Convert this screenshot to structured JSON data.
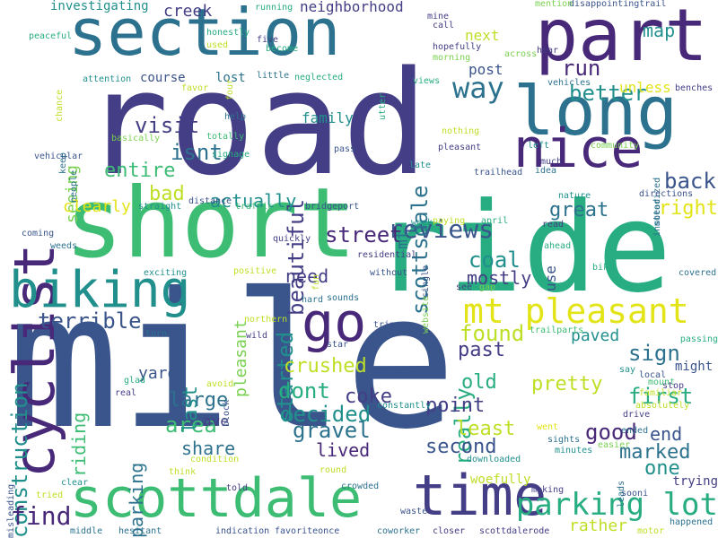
{
  "palette": {
    "dark_purple": "#482878",
    "indigo": "#433e85",
    "blue": "#3a548c",
    "teal_blue": "#2c728e",
    "teal": "#21908d",
    "green_teal": "#27ad81",
    "green": "#3dbc74",
    "light_green": "#7ad151",
    "yellow_green": "#bddf26",
    "yellow": "#e3e418"
  },
  "words": [
    {
      "text": "mile",
      "color": "blue"
    },
    {
      "text": "road",
      "color": "indigo"
    },
    {
      "text": "ride",
      "color": "green_teal"
    },
    {
      "text": "short",
      "color": "green"
    },
    {
      "text": "section",
      "color": "teal_blue"
    },
    {
      "text": "part",
      "color": "dark_purple"
    },
    {
      "text": "long",
      "color": "teal_blue"
    },
    {
      "text": "scottdale",
      "color": "green"
    },
    {
      "text": "time",
      "color": "indigo"
    },
    {
      "text": "cyclist",
      "color": "dark_purple"
    },
    {
      "text": "nice",
      "color": "dark_purple"
    },
    {
      "text": "biking",
      "color": "teal"
    },
    {
      "text": "go",
      "color": "dark_purple"
    },
    {
      "text": "mt pleasant",
      "color": "yellow"
    },
    {
      "text": "parking lot",
      "color": "green_teal"
    },
    {
      "text": "construction",
      "color": "teal"
    },
    {
      "text": "find",
      "color": "dark_purple"
    },
    {
      "text": "reviews",
      "color": "blue"
    },
    {
      "text": "street",
      "color": "dark_purple"
    },
    {
      "text": "way",
      "color": "teal_blue"
    },
    {
      "text": "run",
      "color": "dark_purple"
    },
    {
      "text": "better",
      "color": "teal"
    },
    {
      "text": "map",
      "color": "teal"
    },
    {
      "text": "back",
      "color": "blue"
    },
    {
      "text": "right",
      "color": "yellow"
    },
    {
      "text": "great",
      "color": "teal_blue"
    },
    {
      "text": "visit",
      "color": "indigo"
    },
    {
      "text": "entire",
      "color": "green"
    },
    {
      "text": "bad",
      "color": "yellow_green"
    },
    {
      "text": "isnt",
      "color": "teal_blue"
    },
    {
      "text": "seeing",
      "color": "light_green"
    },
    {
      "text": "beautiful",
      "color": "indigo"
    },
    {
      "text": "scottsdale",
      "color": "teal_blue"
    },
    {
      "text": "actually",
      "color": "teal"
    },
    {
      "text": "need",
      "color": "indigo"
    },
    {
      "text": "started",
      "color": "teal"
    },
    {
      "text": "coal",
      "color": "teal"
    },
    {
      "text": "mostly",
      "color": "indigo"
    },
    {
      "text": "really",
      "color": "green_teal"
    },
    {
      "text": "found",
      "color": "yellow_green"
    },
    {
      "text": "terrible",
      "color": "blue"
    },
    {
      "text": "past",
      "color": "indigo"
    },
    {
      "text": "sign",
      "color": "teal_blue"
    },
    {
      "text": "paved",
      "color": "teal"
    },
    {
      "text": "crushed",
      "color": "yellow_green"
    },
    {
      "text": "dont",
      "color": "green_teal"
    },
    {
      "text": "decided",
      "color": "teal"
    },
    {
      "text": "coke",
      "color": "indigo"
    },
    {
      "text": "old",
      "color": "green_teal"
    },
    {
      "text": "pretty",
      "color": "yellow_green"
    },
    {
      "text": "first",
      "color": "green_teal"
    },
    {
      "text": "good",
      "color": "dark_purple"
    },
    {
      "text": "end",
      "color": "blue"
    },
    {
      "text": "marked",
      "color": "teal_blue"
    },
    {
      "text": "one",
      "color": "teal"
    },
    {
      "text": "area",
      "color": "green"
    },
    {
      "text": "large",
      "color": "teal_blue"
    },
    {
      "text": "share",
      "color": "teal_blue"
    },
    {
      "text": "gravel",
      "color": "teal_blue"
    },
    {
      "text": "lived",
      "color": "dark_purple"
    },
    {
      "text": "point",
      "color": "indigo"
    },
    {
      "text": "least",
      "color": "yellow_green"
    },
    {
      "text": "second",
      "color": "blue"
    },
    {
      "text": "parking",
      "color": "teal_blue"
    },
    {
      "text": "riding",
      "color": "green"
    },
    {
      "text": "last",
      "color": "teal"
    },
    {
      "text": "pleasant",
      "color": "light_green"
    },
    {
      "text": "ave",
      "color": "indigo"
    },
    {
      "text": "yard",
      "color": "blue"
    },
    {
      "text": "rather",
      "color": "yellow_green"
    },
    {
      "text": "mt",
      "color": "teal_blue"
    },
    {
      "text": "creek",
      "color": "indigo"
    },
    {
      "text": "neighborhood",
      "color": "indigo"
    },
    {
      "text": "next",
      "color": "yellow_green"
    },
    {
      "text": "post",
      "color": "blue"
    },
    {
      "text": "family",
      "color": "teal"
    },
    {
      "text": "unless",
      "color": "yellow"
    },
    {
      "text": "investigating",
      "color": "teal"
    },
    {
      "text": "course",
      "color": "blue"
    },
    {
      "text": "lost",
      "color": "teal_blue"
    },
    {
      "text": "woefully",
      "color": "yellow_green"
    },
    {
      "text": "trying",
      "color": "indigo"
    },
    {
      "text": "might",
      "color": "blue"
    },
    {
      "text": "disappointingtrail",
      "color": "blue"
    },
    {
      "text": "mention",
      "color": "light_green"
    },
    {
      "text": "mine",
      "color": "indigo"
    },
    {
      "text": "call",
      "color": "indigo"
    },
    {
      "text": "running",
      "color": "green_teal"
    },
    {
      "text": "honestly",
      "color": "green_teal"
    },
    {
      "text": "used",
      "color": "yellow_green"
    },
    {
      "text": "peaceful",
      "color": "green_teal"
    },
    {
      "text": "five",
      "color": "indigo"
    },
    {
      "text": "become",
      "color": "green_teal"
    },
    {
      "text": "hopefully",
      "color": "indigo"
    },
    {
      "text": "morning",
      "color": "light_green"
    },
    {
      "text": "across",
      "color": "light_green"
    },
    {
      "text": "hear",
      "color": "indigo"
    },
    {
      "text": "neglected",
      "color": "green_teal"
    },
    {
      "text": "little",
      "color": "teal_blue"
    },
    {
      "text": "four",
      "color": "yellow_green"
    },
    {
      "text": "utter",
      "color": "green_teal"
    },
    {
      "text": "views",
      "color": "green_teal"
    },
    {
      "text": "attention",
      "color": "teal"
    },
    {
      "text": "favor",
      "color": "yellow_green"
    },
    {
      "text": "vehicles",
      "color": "teal_blue"
    },
    {
      "text": "benches",
      "color": "indigo"
    },
    {
      "text": "chance",
      "color": "yellow_green"
    },
    {
      "text": "help",
      "color": "teal_blue"
    },
    {
      "text": "totally",
      "color": "green"
    },
    {
      "text": "basically",
      "color": "light_green"
    },
    {
      "text": "signage",
      "color": "green_teal"
    },
    {
      "text": "nothing",
      "color": "yellow_green"
    },
    {
      "text": "pass",
      "color": "blue"
    },
    {
      "text": "pleasant",
      "color": "indigo"
    },
    {
      "text": "community",
      "color": "light_green"
    },
    {
      "text": "left",
      "color": "teal"
    },
    {
      "text": "much",
      "color": "indigo"
    },
    {
      "text": "motorized",
      "color": "teal_blue"
    },
    {
      "text": "people",
      "color": "teal_blue"
    },
    {
      "text": "keep",
      "color": "teal_blue"
    },
    {
      "text": "vehicular",
      "color": "blue"
    },
    {
      "text": "late",
      "color": "teal"
    },
    {
      "text": "trailhead",
      "color": "blue"
    },
    {
      "text": "idea",
      "color": "teal_blue"
    },
    {
      "text": "nature",
      "color": "teal"
    },
    {
      "text": "directions",
      "color": "blue"
    },
    {
      "text": "instead",
      "color": "teal_blue"
    },
    {
      "text": "distance",
      "color": "blue"
    },
    {
      "text": "traffic",
      "color": "green"
    },
    {
      "text": "straight",
      "color": "teal"
    },
    {
      "text": "bridgeport",
      "color": "blue"
    },
    {
      "text": "clearly",
      "color": "yellow"
    },
    {
      "text": "week",
      "color": "teal"
    },
    {
      "text": "paying",
      "color": "yellow_green"
    },
    {
      "text": "april",
      "color": "green_teal"
    },
    {
      "text": "read",
      "color": "indigo"
    },
    {
      "text": "ahead",
      "color": "green_teal"
    },
    {
      "text": "coming",
      "color": "blue"
    },
    {
      "text": "weeds",
      "color": "teal_blue"
    },
    {
      "text": "quickly",
      "color": "indigo"
    },
    {
      "text": "residential",
      "color": "indigo"
    },
    {
      "text": "single",
      "color": "blue"
    },
    {
      "text": "exciting",
      "color": "teal"
    },
    {
      "text": "positive",
      "color": "yellow_green"
    },
    {
      "text": "fun",
      "color": "yellow_green"
    },
    {
      "text": "without",
      "color": "blue"
    },
    {
      "text": "website",
      "color": "light_green"
    },
    {
      "text": "see",
      "color": "indigo"
    },
    {
      "text": "gap",
      "color": "light_green"
    },
    {
      "text": "covered",
      "color": "teal_blue"
    },
    {
      "text": "bike",
      "color": "green_teal"
    },
    {
      "text": "use",
      "color": "blue"
    },
    {
      "text": "hard",
      "color": "teal_blue"
    },
    {
      "text": "sounds",
      "color": "teal_blue"
    },
    {
      "text": "northern",
      "color": "yellow_green"
    },
    {
      "text": "turn",
      "color": "teal_blue"
    },
    {
      "text": "wild",
      "color": "indigo"
    },
    {
      "text": "trip",
      "color": "blue"
    },
    {
      "text": "star",
      "color": "blue"
    },
    {
      "text": "trailparts",
      "color": "green"
    },
    {
      "text": "passing",
      "color": "green_teal"
    },
    {
      "text": "say",
      "color": "teal"
    },
    {
      "text": "local",
      "color": "blue"
    },
    {
      "text": "mount",
      "color": "green"
    },
    {
      "text": "stop",
      "color": "indigo"
    },
    {
      "text": "familiar",
      "color": "yellow_green"
    },
    {
      "text": "absolutely",
      "color": "yellow_green"
    },
    {
      "text": "drive",
      "color": "indigo"
    },
    {
      "text": "ended",
      "color": "teal_blue"
    },
    {
      "text": "easier",
      "color": "light_green"
    },
    {
      "text": "went",
      "color": "yellow"
    },
    {
      "text": "sights",
      "color": "teal_blue"
    },
    {
      "text": "minutes",
      "color": "teal"
    },
    {
      "text": "glad",
      "color": "green_teal"
    },
    {
      "text": "avoid",
      "color": "yellow_green"
    },
    {
      "text": "real",
      "color": "indigo"
    },
    {
      "text": "block",
      "color": "blue"
    },
    {
      "text": "constantly",
      "color": "teal"
    },
    {
      "text": "condition",
      "color": "yellow_green"
    },
    {
      "text": "think",
      "color": "yellow_green"
    },
    {
      "text": "round",
      "color": "yellow_green"
    },
    {
      "text": "downloaded",
      "color": "teal"
    },
    {
      "text": "leads",
      "color": "teal_blue"
    },
    {
      "text": "sooni",
      "color": "blue"
    },
    {
      "text": "making",
      "color": "indigo"
    },
    {
      "text": "clear",
      "color": "teal"
    },
    {
      "text": "misleading",
      "color": "blue"
    },
    {
      "text": "tried",
      "color": "yellow_green"
    },
    {
      "text": "told",
      "color": "indigo"
    },
    {
      "text": "crowded",
      "color": "teal_blue"
    },
    {
      "text": "waste",
      "color": "blue"
    },
    {
      "text": "happened",
      "color": "teal_blue"
    },
    {
      "text": "middle",
      "color": "teal_blue"
    },
    {
      "text": "hesitant",
      "color": "teal_blue"
    },
    {
      "text": "indication",
      "color": "blue"
    },
    {
      "text": "favoriteonce",
      "color": "blue"
    },
    {
      "text": "coworker",
      "color": "teal_blue"
    },
    {
      "text": "closer",
      "color": "indigo"
    },
    {
      "text": "scottdalerode",
      "color": "indigo"
    },
    {
      "text": "motor",
      "color": "yellow_green"
    }
  ]
}
